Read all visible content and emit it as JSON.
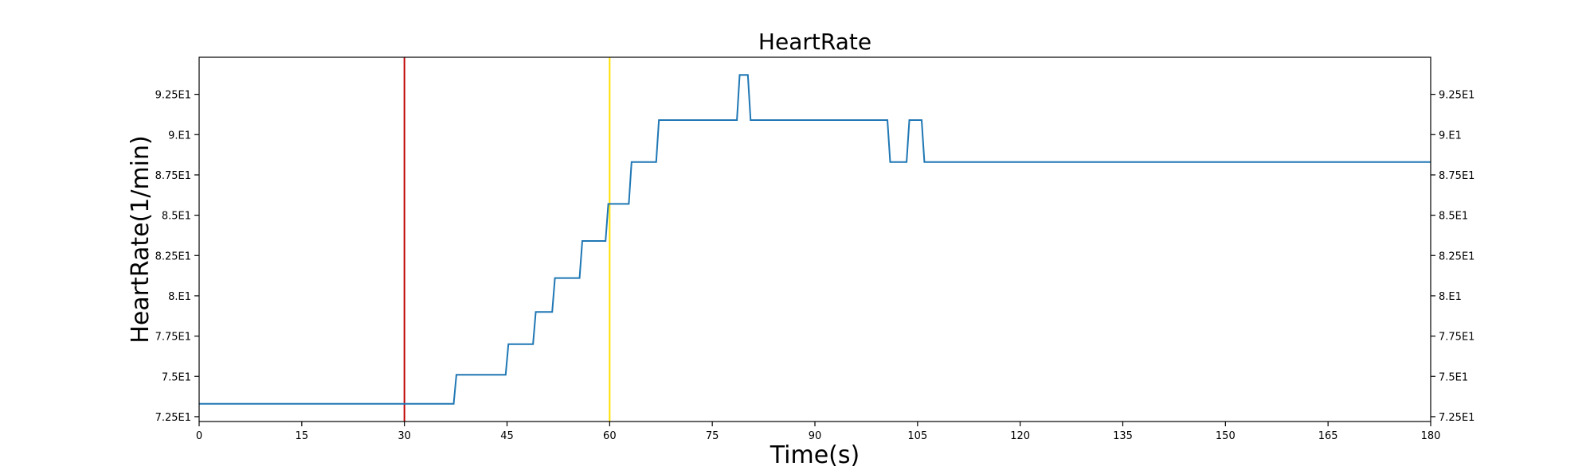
{
  "chart_data": {
    "type": "line",
    "title": "HeartRate",
    "xlabel": "Time(s)",
    "ylabel": "HeartRate(1/min)",
    "xlim": [
      0,
      180
    ],
    "ylim": [
      72.2,
      94.8
    ],
    "x_ticks": [
      0,
      15,
      30,
      45,
      60,
      75,
      90,
      105,
      120,
      135,
      150,
      165,
      180
    ],
    "x_tick_labels": [
      "0",
      "15",
      "30",
      "45",
      "60",
      "75",
      "90",
      "105",
      "120",
      "135",
      "150",
      "165",
      "180"
    ],
    "y_ticks": [
      72.5,
      75,
      77.5,
      80,
      82.5,
      85,
      87.5,
      90,
      92.5
    ],
    "y_tick_labels": [
      "7.25E1",
      "7.5E1",
      "7.75E1",
      "8.E1",
      "8.25E1",
      "8.5E1",
      "8.75E1",
      "9.E1",
      "9.25E1"
    ],
    "right_axis_ticks": true,
    "grid": false,
    "series": [
      {
        "color": "#1f77b4",
        "x": [
          0,
          37.2,
          37.6,
          44.8,
          45.2,
          48.8,
          49.2,
          51.6,
          52.0,
          55.6,
          56.0,
          59.4,
          59.8,
          62.8,
          63.2,
          66.8,
          67.2,
          78.6,
          79.0,
          80.2,
          80.6,
          100.6,
          101.0,
          103.4,
          103.8,
          105.6,
          106.0,
          180
        ],
        "y": [
          73.3,
          73.3,
          75.1,
          75.1,
          77.0,
          77.0,
          79.0,
          79.0,
          81.1,
          81.1,
          83.4,
          83.4,
          85.7,
          85.7,
          88.3,
          88.3,
          90.9,
          90.9,
          93.7,
          93.7,
          90.9,
          90.9,
          88.3,
          88.3,
          90.9,
          90.9,
          88.3,
          88.3
        ]
      }
    ],
    "reference_lines": [
      {
        "x": 30,
        "color": "#c00000"
      },
      {
        "x": 60,
        "color": "#ffe000"
      }
    ]
  }
}
